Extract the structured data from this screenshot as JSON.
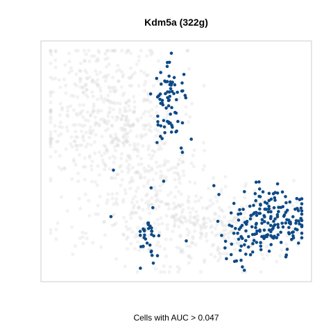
{
  "chart_data": {
    "type": "scatter",
    "title": "Kdm5a (322g)",
    "caption": "Cells with AUC > 0.047",
    "axes_visible": false,
    "grid": false,
    "colors": {
      "background_cells": "#d9d9d9",
      "highlighted_cells": "#0d4a86",
      "panel_border": "#cccccc"
    },
    "xlim": [
      0,
      100
    ],
    "ylim": [
      0,
      100
    ],
    "clusters": [
      {
        "name": "background-top-left",
        "role": "background",
        "cx": 22,
        "cy": 72,
        "sx": 14,
        "sy": 18,
        "n": 520,
        "seed": 11
      },
      {
        "name": "background-bottom-band",
        "role": "background",
        "cx": 58,
        "cy": 20,
        "sx": 22,
        "sy": 9,
        "n": 380,
        "seed": 23
      },
      {
        "name": "background-mid-left",
        "role": "background",
        "cx": 40,
        "cy": 42,
        "sx": 10,
        "sy": 10,
        "n": 140,
        "seed": 37
      },
      {
        "name": "highlight-top-cluster",
        "role": "highlight",
        "cx": 48,
        "cy": 77,
        "sx": 3.5,
        "sy": 9,
        "n": 75,
        "seed": 41
      },
      {
        "name": "highlight-bottom-left-cluster",
        "role": "highlight",
        "cx": 39,
        "cy": 16,
        "sx": 2.5,
        "sy": 6,
        "n": 32,
        "seed": 53
      },
      {
        "name": "highlight-bottom-right-cluster",
        "role": "highlight",
        "cx": 87,
        "cy": 22,
        "sx": 7,
        "sy": 7,
        "n": 170,
        "seed": 67
      },
      {
        "name": "highlight-bottom-mid-cluster",
        "role": "highlight",
        "cx": 74,
        "cy": 13,
        "sx": 3,
        "sy": 6,
        "n": 25,
        "seed": 79
      }
    ],
    "isolated_points": [
      {
        "x": 25,
        "y": 46,
        "role": "highlight"
      },
      {
        "x": 24,
        "y": 25,
        "role": "highlight"
      },
      {
        "x": 40,
        "y": 38,
        "role": "highlight"
      },
      {
        "x": 45,
        "y": 41,
        "role": "highlight"
      },
      {
        "x": 54,
        "y": 14,
        "role": "highlight"
      },
      {
        "x": 65,
        "y": 39,
        "role": "highlight"
      },
      {
        "x": 67,
        "y": 35,
        "role": "highlight"
      },
      {
        "x": 70,
        "y": 6,
        "role": "highlight"
      },
      {
        "x": 74,
        "y": 5,
        "role": "highlight"
      },
      {
        "x": 56,
        "y": 60,
        "role": "highlight"
      }
    ]
  }
}
